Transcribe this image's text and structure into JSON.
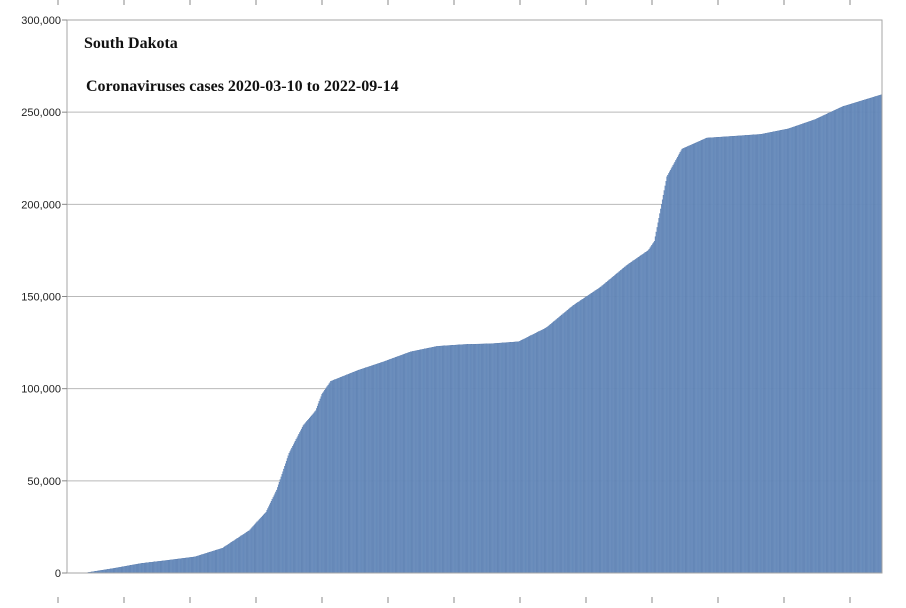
{
  "chart_data": {
    "type": "bar",
    "title": "South Dakota",
    "subtitle": "Coronaviruses cases 2020-03-10 to 2022-09-14",
    "xlabel": "",
    "ylabel": "",
    "x_start": "2020-03-10",
    "x_end": "2022-09-14",
    "ylim": [
      0,
      300000
    ],
    "yticks": [
      0,
      50000,
      100000,
      150000,
      200000,
      250000,
      300000
    ],
    "ytick_labels": [
      "0",
      "50,000",
      "100,000",
      "150,000",
      "200,000",
      "250,000",
      "300,000"
    ],
    "grid": true,
    "legend": "none",
    "colors": {
      "bar": "#7396c4",
      "bar_edge": "#4f73a6",
      "grid": "#b9b9b9",
      "plot_border": "#a6a6a6"
    },
    "cumulative_cases": [
      {
        "date": "2020-03-10",
        "value": 0
      },
      {
        "date": "2020-04-01",
        "value": 200
      },
      {
        "date": "2020-05-01",
        "value": 2500
      },
      {
        "date": "2020-06-01",
        "value": 5200
      },
      {
        "date": "2020-07-01",
        "value": 6900
      },
      {
        "date": "2020-08-01",
        "value": 8800
      },
      {
        "date": "2020-09-01",
        "value": 13500
      },
      {
        "date": "2020-10-01",
        "value": 23000
      },
      {
        "date": "2020-10-20",
        "value": 33000
      },
      {
        "date": "2020-11-01",
        "value": 45000
      },
      {
        "date": "2020-11-15",
        "value": 65000
      },
      {
        "date": "2020-12-01",
        "value": 80000
      },
      {
        "date": "2020-12-15",
        "value": 88000
      },
      {
        "date": "2020-12-22",
        "value": 97000
      },
      {
        "date": "2021-01-01",
        "value": 104000
      },
      {
        "date": "2021-02-01",
        "value": 110000
      },
      {
        "date": "2021-03-01",
        "value": 114500
      },
      {
        "date": "2021-04-01",
        "value": 120000
      },
      {
        "date": "2021-05-01",
        "value": 123000
      },
      {
        "date": "2021-06-01",
        "value": 124000
      },
      {
        "date": "2021-07-01",
        "value": 124400
      },
      {
        "date": "2021-08-01",
        "value": 125500
      },
      {
        "date": "2021-09-01",
        "value": 133000
      },
      {
        "date": "2021-10-01",
        "value": 145000
      },
      {
        "date": "2021-11-01",
        "value": 155000
      },
      {
        "date": "2021-12-01",
        "value": 167000
      },
      {
        "date": "2021-12-25",
        "value": 175000
      },
      {
        "date": "2022-01-01",
        "value": 180000
      },
      {
        "date": "2022-01-15",
        "value": 215000
      },
      {
        "date": "2022-02-01",
        "value": 230000
      },
      {
        "date": "2022-03-01",
        "value": 236000
      },
      {
        "date": "2022-04-01",
        "value": 237000
      },
      {
        "date": "2022-05-01",
        "value": 238000
      },
      {
        "date": "2022-06-01",
        "value": 241000
      },
      {
        "date": "2022-07-01",
        "value": 246000
      },
      {
        "date": "2022-08-01",
        "value": 253000
      },
      {
        "date": "2022-09-14",
        "value": 259500
      }
    ]
  }
}
